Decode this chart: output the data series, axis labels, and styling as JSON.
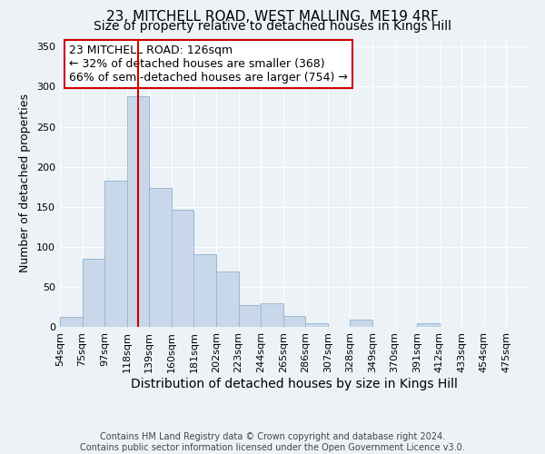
{
  "title1": "23, MITCHELL ROAD, WEST MALLING, ME19 4RF",
  "title2": "Size of property relative to detached houses in Kings Hill",
  "xlabel": "Distribution of detached houses by size in Kings Hill",
  "ylabel": "Number of detached properties",
  "bin_labels": [
    "54sqm",
    "75sqm",
    "97sqm",
    "118sqm",
    "139sqm",
    "160sqm",
    "181sqm",
    "202sqm",
    "223sqm",
    "244sqm",
    "265sqm",
    "286sqm",
    "307sqm",
    "328sqm",
    "349sqm",
    "370sqm",
    "391sqm",
    "412sqm",
    "433sqm",
    "454sqm",
    "475sqm"
  ],
  "bar_heights": [
    13,
    85,
    183,
    288,
    174,
    146,
    91,
    69,
    27,
    30,
    14,
    5,
    0,
    9,
    0,
    0,
    5,
    0,
    0,
    0,
    0
  ],
  "bar_color": "#c8d8ea",
  "bar_edgecolor": "#9ab8d0",
  "vline_x": 3.5,
  "vline_color": "#cc0000",
  "annotation_title": "23 MITCHELL ROAD: 126sqm",
  "annotation_line1": "← 32% of detached houses are smaller (368)",
  "annotation_line2": "66% of semi-detached houses are larger (754) →",
  "annotation_box_edgecolor": "#cc0000",
  "ylim": [
    0,
    360
  ],
  "yticks": [
    0,
    50,
    100,
    150,
    200,
    250,
    300,
    350
  ],
  "footer1": "Contains HM Land Registry data © Crown copyright and database right 2024.",
  "footer2": "Contains public sector information licensed under the Open Government Licence v3.0.",
  "background_color": "#edf2f7",
  "plot_bg_color": "#edf2f7",
  "title1_fontsize": 11,
  "title2_fontsize": 10,
  "xlabel_fontsize": 10,
  "ylabel_fontsize": 9,
  "tick_fontsize": 8,
  "annotation_fontsize": 9,
  "footer_fontsize": 7
}
